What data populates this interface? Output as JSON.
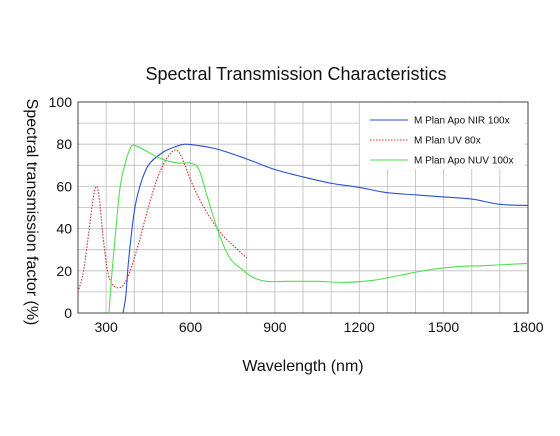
{
  "chart_data": {
    "type": "line",
    "title": "Spectral Transmission Characteristics",
    "xlabel": "Wavelength (nm)",
    "ylabel": "Spectral transmission factor (%)",
    "xlim": [
      200,
      1800
    ],
    "ylim": [
      0,
      100
    ],
    "x_ticks": [
      300,
      600,
      900,
      1200,
      1500,
      1800
    ],
    "y_ticks": [
      0,
      20,
      40,
      60,
      80,
      100
    ],
    "grid": true,
    "legend_position": "top-right",
    "series": [
      {
        "name": "M Plan Apo NIR 100x",
        "color": "#2a4fd6",
        "dash": "solid",
        "points": [
          [
            360,
            0
          ],
          [
            370,
            8
          ],
          [
            380,
            25
          ],
          [
            400,
            48
          ],
          [
            420,
            60
          ],
          [
            450,
            70
          ],
          [
            500,
            76
          ],
          [
            550,
            79
          ],
          [
            580,
            80
          ],
          [
            620,
            79.5
          ],
          [
            700,
            77.5
          ],
          [
            800,
            73
          ],
          [
            900,
            68
          ],
          [
            1000,
            64.5
          ],
          [
            1100,
            61.5
          ],
          [
            1200,
            59.5
          ],
          [
            1300,
            57
          ],
          [
            1400,
            56
          ],
          [
            1500,
            55
          ],
          [
            1600,
            54
          ],
          [
            1700,
            51.5
          ],
          [
            1800,
            51
          ]
        ]
      },
      {
        "name": "M Plan UV 80x",
        "color": "#d42a2a",
        "dash": "dotted",
        "points": [
          [
            200,
            10
          ],
          [
            220,
            20
          ],
          [
            240,
            40
          ],
          [
            255,
            55
          ],
          [
            265,
            60
          ],
          [
            275,
            55
          ],
          [
            290,
            35
          ],
          [
            305,
            20
          ],
          [
            320,
            14
          ],
          [
            340,
            12
          ],
          [
            360,
            13
          ],
          [
            380,
            18
          ],
          [
            400,
            26
          ],
          [
            420,
            35
          ],
          [
            450,
            50
          ],
          [
            480,
            63
          ],
          [
            510,
            72
          ],
          [
            540,
            77
          ],
          [
            560,
            76
          ],
          [
            580,
            70
          ],
          [
            610,
            60
          ],
          [
            640,
            52
          ],
          [
            680,
            43
          ],
          [
            720,
            36
          ],
          [
            760,
            31
          ],
          [
            800,
            26
          ]
        ]
      },
      {
        "name": "M Plan Apo NUV 100x",
        "color": "#4ee04e",
        "dash": "solid",
        "points": [
          [
            310,
            0
          ],
          [
            320,
            18
          ],
          [
            335,
            40
          ],
          [
            350,
            60
          ],
          [
            370,
            72
          ],
          [
            390,
            79
          ],
          [
            410,
            79
          ],
          [
            440,
            77
          ],
          [
            480,
            74
          ],
          [
            520,
            72
          ],
          [
            560,
            71
          ],
          [
            600,
            71
          ],
          [
            630,
            68
          ],
          [
            660,
            55
          ],
          [
            700,
            38
          ],
          [
            740,
            26
          ],
          [
            780,
            21
          ],
          [
            820,
            17
          ],
          [
            870,
            15
          ],
          [
            950,
            15
          ],
          [
            1050,
            15
          ],
          [
            1150,
            14.5
          ],
          [
            1250,
            15.5
          ],
          [
            1350,
            18
          ],
          [
            1450,
            20.5
          ],
          [
            1550,
            22
          ],
          [
            1650,
            22.5
          ],
          [
            1800,
            23.5
          ]
        ]
      }
    ]
  }
}
